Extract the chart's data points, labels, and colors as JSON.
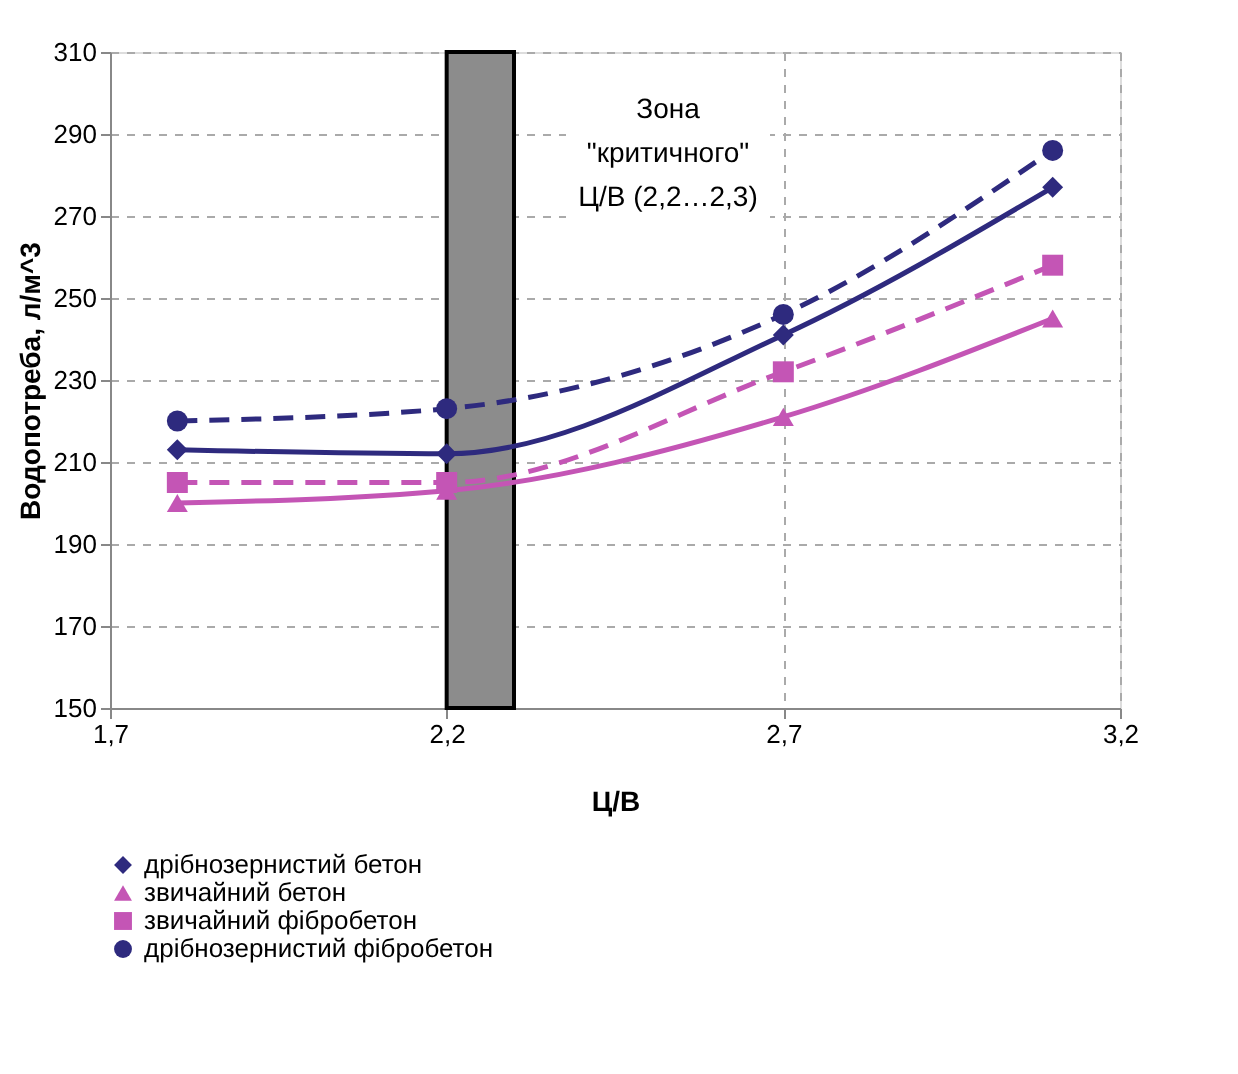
{
  "chart_data": {
    "type": "line",
    "xlabel": "Ц/В",
    "ylabel": "Водопотреба, л/м^3",
    "x": [
      1.8,
      2.2,
      2.7,
      3.1
    ],
    "series": [
      {
        "name": "дрібнозернистий бетон",
        "color": "#2e2a7e",
        "values": [
          213,
          212,
          241,
          277
        ],
        "marker": "diamond",
        "line_style": "solid"
      },
      {
        "name": "звичайний бетон",
        "color": "#c455b5",
        "values": [
          200,
          203,
          221,
          245
        ],
        "marker": "triangle",
        "line_style": "solid"
      },
      {
        "name": "звичайний фібробетон",
        "color": "#c455b5",
        "values": [
          205,
          205,
          232,
          258
        ],
        "marker": "square",
        "line_style": "dashed"
      },
      {
        "name": "дрібнозернистий фібробетон",
        "color": "#2e2a7e",
        "values": [
          220,
          223,
          246,
          286
        ],
        "marker": "circle",
        "line_style": "dashed"
      }
    ],
    "bands": [
      {
        "axis": "x",
        "from": 2.2,
        "to": 2.3,
        "label": "Зона\n\"критичного\"\nЦ/В (2,2…2,3)",
        "color": "#8c8c8c"
      }
    ],
    "xlim": [
      1.7,
      3.2
    ],
    "xticks": [
      {
        "value": 1.7,
        "label": "1,7"
      },
      {
        "value": 2.2,
        "label": "2,2"
      },
      {
        "value": 2.7,
        "label": "2,7"
      },
      {
        "value": 3.2,
        "label": "3,2"
      }
    ],
    "ylim": [
      150,
      310
    ],
    "yticks": [
      150,
      170,
      190,
      210,
      230,
      250,
      270,
      290,
      310
    ],
    "grid": true,
    "legend": "bottom"
  }
}
